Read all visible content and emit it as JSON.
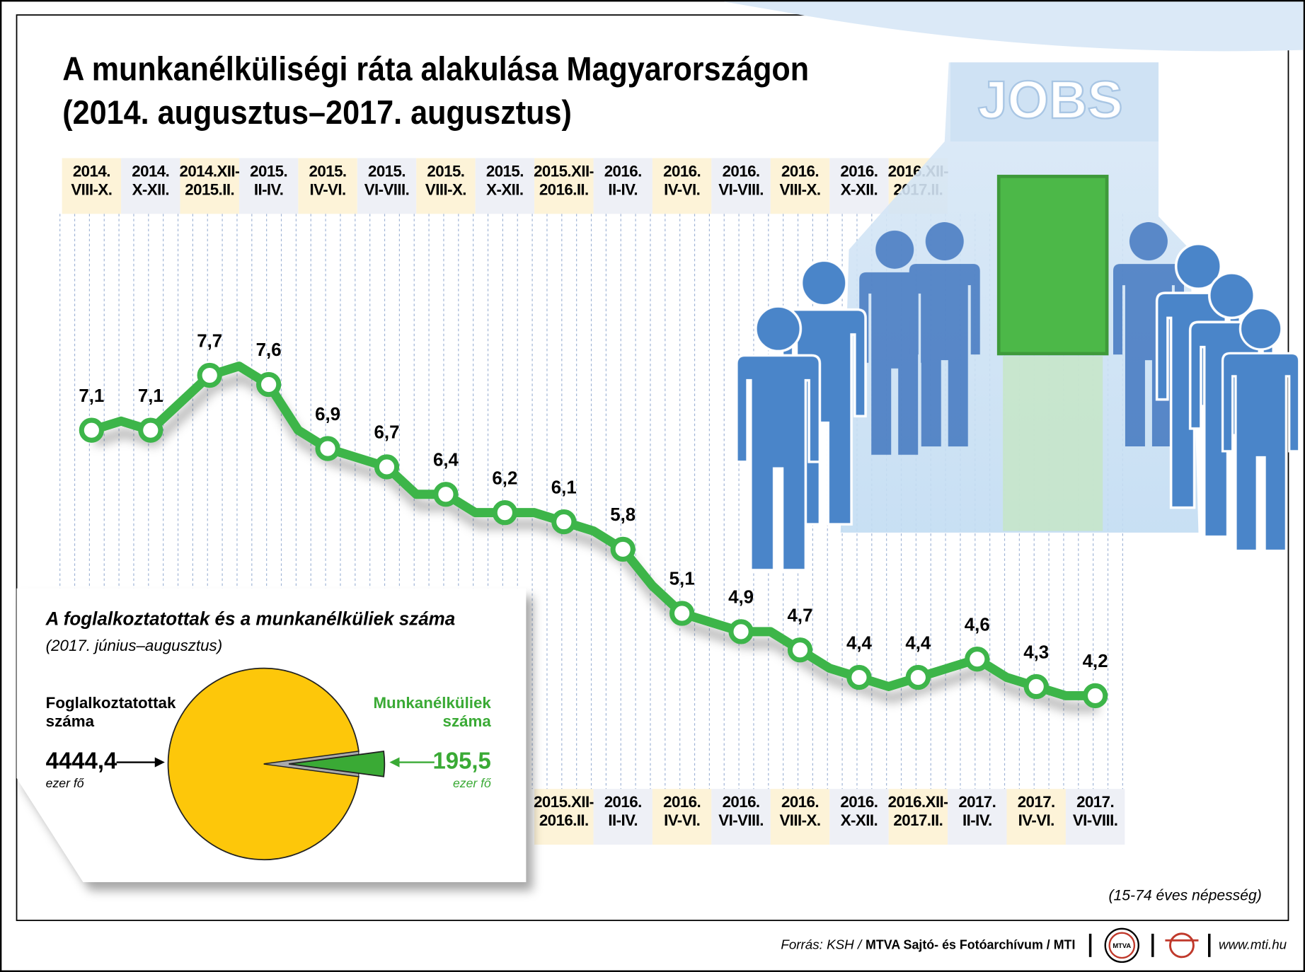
{
  "title": "A munkanélküliségi ráta alakulása Magyarországon",
  "subtitle": "(2014. augusztus–2017. augusztus)",
  "illustration_text": "JOBS",
  "note": "(15-74 éves népesség)",
  "source_label": "Forrás: KSH /",
  "source_names": "MTVA Sajtó- és Fotóarchívum / MTI",
  "logo_text": "MTVA",
  "website": "www.mti.hu",
  "chart_data": [
    {
      "type": "line",
      "categories": [
        "2014.\nVIII-X.",
        null,
        "2014.\nX-XII.",
        null,
        "2014.XII-\n2015.II.",
        null,
        "2015.\nII-IV.",
        null,
        "2015.\nIV-VI.",
        null,
        "2015.\nVI-VIII.",
        null,
        "2015.\nVIII-X.",
        null,
        "2015.\nX-XII.",
        null,
        "2015.XII-\n2016.II.",
        null,
        "2016.\nII-IV.",
        null,
        "2016.\nIV-VI.",
        null,
        "2016.\nVI-VIII.",
        null,
        "2016.\nVIII-X.",
        null,
        "2016.\nX-XII.",
        null,
        "2016.XII-\n2017.II.",
        null,
        "2017.\nII-IV.",
        null,
        "2017.\nIV-VI.",
        null,
        "2017.\nVI-VIII."
      ],
      "values": [
        7.1,
        7.2,
        7.1,
        7.4,
        7.7,
        7.8,
        7.6,
        7.1,
        6.9,
        6.8,
        6.7,
        6.4,
        6.4,
        6.2,
        6.2,
        6.2,
        6.1,
        6.0,
        5.8,
        5.4,
        5.1,
        5.0,
        4.9,
        4.9,
        4.7,
        4.5,
        4.4,
        4.3,
        4.4,
        4.5,
        4.6,
        4.4,
        4.3,
        4.2,
        4.2
      ],
      "value_labels": [
        "7,1",
        null,
        "7,1",
        null,
        "7,7",
        null,
        "7,6",
        null,
        "6,9",
        null,
        "6,7",
        null,
        "6,4",
        null,
        "6,2",
        null,
        "6,1",
        null,
        "5,8",
        null,
        "5,1",
        null,
        "4,9",
        null,
        "4,7",
        null,
        "4,4",
        null,
        "4,4",
        null,
        "4,6",
        null,
        "4,3",
        null,
        "4,2"
      ],
      "color": "#3db54a",
      "ylim": [
        3,
        9.5
      ]
    },
    {
      "type": "pie",
      "title": "A foglalkoztatottak és a munkanélküliek száma",
      "subtitle": "(2017. június–augusztus)",
      "categories": [
        "Foglalkoztatottak\nszáma",
        "Munkanélküliek\nszáma"
      ],
      "values": [
        4444.4,
        195.5
      ],
      "value_labels": [
        "4444,4",
        "195,5"
      ],
      "unit": "ezer fő",
      "colors": [
        "#fdc70a",
        "#3aaa35"
      ]
    }
  ]
}
